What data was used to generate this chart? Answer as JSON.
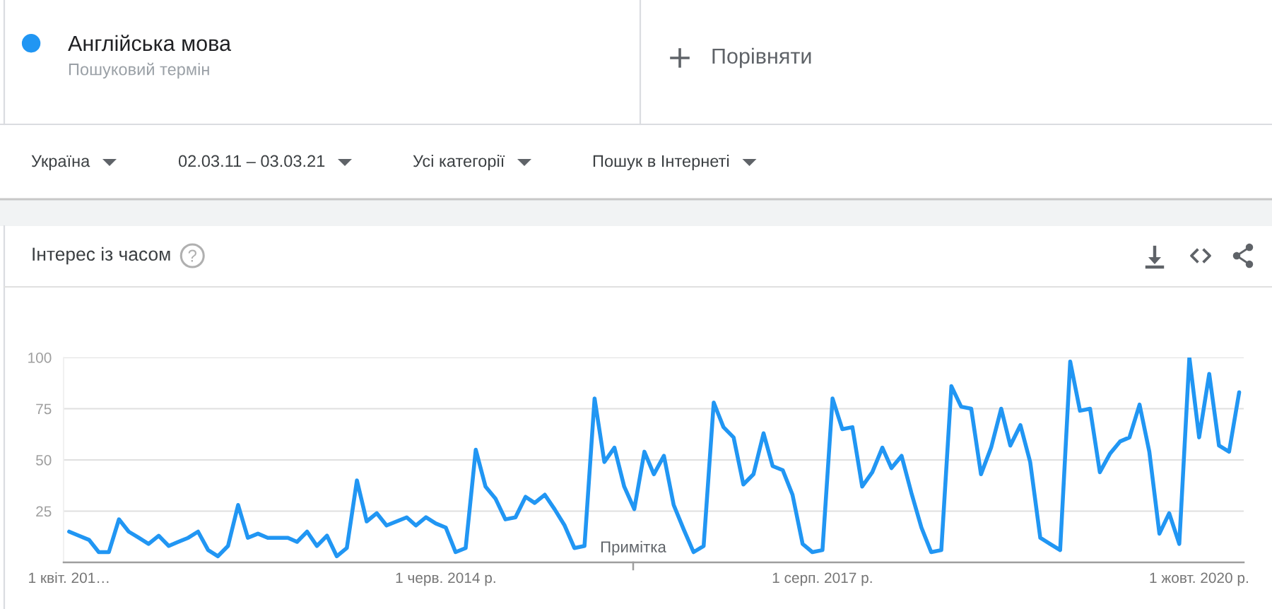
{
  "chart_data": {
    "type": "line",
    "title": "Інтерес із часом",
    "x": [
      "2011-04",
      "2011-05",
      "2011-06",
      "2011-07",
      "2011-08",
      "2011-09",
      "2011-10",
      "2011-11",
      "2011-12",
      "2012-01",
      "2012-02",
      "2012-03",
      "2012-04",
      "2012-05",
      "2012-06",
      "2012-07",
      "2012-08",
      "2012-09",
      "2012-10",
      "2012-11",
      "2012-12",
      "2013-01",
      "2013-02",
      "2013-03",
      "2013-04",
      "2013-05",
      "2013-06",
      "2013-07",
      "2013-08",
      "2013-09",
      "2013-10",
      "2013-11",
      "2013-12",
      "2014-01",
      "2014-02",
      "2014-03",
      "2014-04",
      "2014-05",
      "2014-06",
      "2014-07",
      "2014-08",
      "2014-09",
      "2014-10",
      "2014-11",
      "2014-12",
      "2015-01",
      "2015-02",
      "2015-03",
      "2015-04",
      "2015-05",
      "2015-06",
      "2015-07",
      "2015-08",
      "2015-09",
      "2015-10",
      "2015-11",
      "2015-12",
      "2016-01",
      "2016-02",
      "2016-03",
      "2016-04",
      "2016-05",
      "2016-06",
      "2016-07",
      "2016-08",
      "2016-09",
      "2016-10",
      "2016-11",
      "2016-12",
      "2017-01",
      "2017-02",
      "2017-03",
      "2017-04",
      "2017-05",
      "2017-06",
      "2017-07",
      "2017-08",
      "2017-09",
      "2017-10",
      "2017-11",
      "2017-12",
      "2018-01",
      "2018-02",
      "2018-03",
      "2018-04",
      "2018-05",
      "2018-06",
      "2018-07",
      "2018-08",
      "2018-09",
      "2018-10",
      "2018-11",
      "2018-12",
      "2019-01",
      "2019-02",
      "2019-03",
      "2019-04",
      "2019-05",
      "2019-06",
      "2019-07",
      "2019-08",
      "2019-09",
      "2019-10",
      "2019-11",
      "2019-12",
      "2020-01",
      "2020-02",
      "2020-03",
      "2020-04",
      "2020-05",
      "2020-06",
      "2020-07",
      "2020-08",
      "2020-09",
      "2020-10",
      "2020-11",
      "2020-12",
      "2021-01",
      "2021-02"
    ],
    "series": [
      {
        "name": "Англійська мова",
        "color": "#2196f3",
        "values": [
          15,
          13,
          11,
          5,
          5,
          21,
          15,
          12,
          9,
          13,
          8,
          10,
          12,
          15,
          6,
          3,
          8,
          28,
          12,
          14,
          12,
          12,
          12,
          10,
          15,
          8,
          13,
          3,
          7,
          40,
          20,
          24,
          18,
          20,
          22,
          18,
          22,
          19,
          17,
          5,
          7,
          55,
          37,
          31,
          21,
          22,
          32,
          29,
          33,
          26,
          18,
          7,
          8,
          80,
          49,
          56,
          37,
          26,
          54,
          43,
          52,
          28,
          16,
          5,
          8,
          78,
          66,
          61,
          38,
          43,
          63,
          47,
          45,
          33,
          9,
          5,
          6,
          80,
          65,
          66,
          37,
          44,
          56,
          46,
          52,
          34,
          17,
          5,
          6,
          86,
          76,
          75,
          43,
          56,
          75,
          57,
          67,
          49,
          12,
          9,
          6,
          98,
          74,
          75,
          44,
          53,
          59,
          61,
          77,
          54,
          14,
          24,
          9,
          100,
          61,
          92,
          57,
          54,
          83
        ]
      }
    ],
    "xlim": [
      "2011-03-15",
      "2021-02-15"
    ],
    "xticks": [
      {
        "value": "2011-04-01",
        "label": "1 квіт. 201…"
      },
      {
        "value": "2014-06-01",
        "label": "1 черв. 2014 р."
      },
      {
        "value": "2017-08-01",
        "label": "1 серп. 2017 р."
      },
      {
        "value": "2020-10-01",
        "label": "1 жовт. 2020 р."
      }
    ],
    "ylim": [
      0,
      100
    ],
    "yticks": [
      25,
      50,
      75,
      100
    ],
    "grid": "y",
    "legend": "top left",
    "line_style": "solid",
    "annotations": [
      "Пошуковий термін",
      "Порівняти",
      "Україна",
      "02.03.11 – 03.03.21",
      "Усі категорії",
      "Пошук в Інтернеті",
      "Примітка"
    ]
  }
}
